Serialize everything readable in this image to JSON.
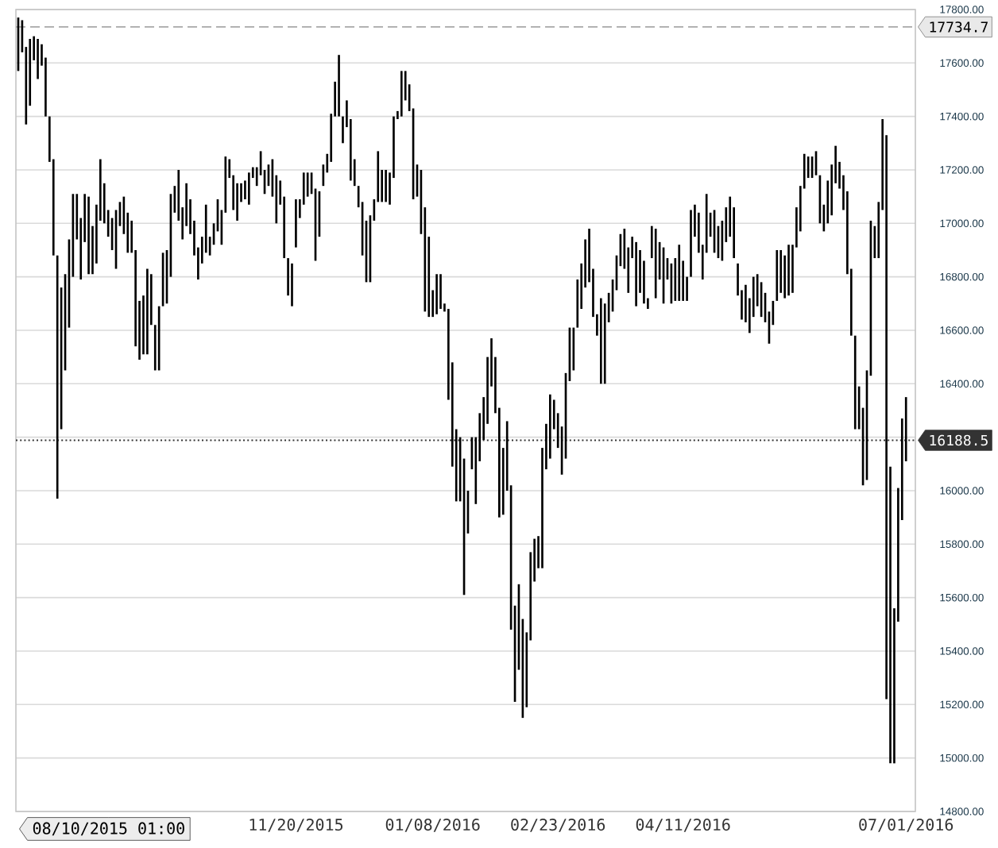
{
  "chart_data": {
    "type": "bar",
    "color": "#000000",
    "categories": [
      null,
      null,
      null,
      null,
      null,
      null,
      null,
      null,
      null,
      null,
      null,
      null,
      null,
      null,
      null,
      null,
      null,
      null,
      null,
      null,
      null,
      null,
      null,
      null,
      null,
      null,
      null,
      null,
      null,
      null,
      null,
      null,
      null,
      null,
      null,
      null,
      null,
      null,
      null,
      null,
      null,
      null,
      null,
      null,
      null,
      null,
      null,
      null,
      null,
      null,
      null,
      null,
      null,
      null,
      null,
      null,
      null,
      null,
      null,
      null,
      null,
      null,
      null,
      null,
      null,
      null,
      null,
      null,
      null,
      null,
      null,
      "11/20/2015",
      null,
      null,
      null,
      null,
      null,
      null,
      null,
      null,
      null,
      null,
      null,
      null,
      null,
      null,
      null,
      null,
      null,
      null,
      null,
      null,
      null,
      null,
      null,
      null,
      null,
      null,
      null,
      null,
      null,
      null,
      null,
      null,
      null,
      null,
      "01/08/2016",
      null,
      null,
      null,
      null,
      null,
      null,
      null,
      null,
      null,
      null,
      null,
      null,
      null,
      null,
      null,
      null,
      null,
      null,
      null,
      null,
      null,
      null,
      null,
      null,
      null,
      null,
      null,
      null,
      null,
      null,
      null,
      "02/23/2016",
      null,
      null,
      null,
      null,
      null,
      null,
      null,
      null,
      null,
      null,
      null,
      null,
      null,
      null,
      null,
      null,
      null,
      null,
      null,
      null,
      null,
      null,
      null,
      null,
      null,
      null,
      null,
      null,
      null,
      null,
      null,
      "04/11/2016",
      null,
      null,
      null,
      null,
      null,
      null,
      null,
      null,
      null,
      null,
      null,
      null,
      null,
      null,
      null,
      null,
      null,
      null,
      null,
      null,
      null,
      null,
      null,
      null,
      null,
      null,
      null,
      null,
      null,
      null,
      null,
      null,
      null,
      null,
      null,
      null,
      null,
      null,
      null,
      null,
      null,
      null,
      null,
      null,
      null,
      null,
      null,
      null,
      null,
      null,
      null,
      null,
      null,
      null,
      null,
      null,
      "07/01/2016"
    ],
    "values": [
      200,
      120,
      290,
      250,
      90,
      150,
      80,
      220,
      170,
      360,
      910,
      530,
      360,
      330,
      310,
      170,
      230,
      180,
      290,
      180,
      220,
      230,
      150,
      100,
      120,
      220,
      90,
      140,
      150,
      120,
      360,
      220,
      220,
      320,
      190,
      170,
      240,
      200,
      200,
      310,
      100,
      190,
      120,
      160,
      130,
      130,
      120,
      100,
      180,
      70,
      80,
      120,
      130,
      210,
      70,
      130,
      140,
      70,
      70,
      120,
      40,
      70,
      90,
      90,
      80,
      140,
      180,
      90,
      230,
      140,
      160,
      180,
      70,
      120,
      90,
      80,
      270,
      170,
      80,
      70,
      180,
      130,
      230,
      100,
      100,
      230,
      100,
      80,
      200,
      230,
      250,
      80,
      190,
      120,
      120,
      120,
      230,
      30,
      170,
      110,
      100,
      340,
      120,
      240,
      390,
      300,
      100,
      150,
      130,
      30,
      340,
      390,
      270,
      240,
      510,
      160,
      120,
      250,
      180,
      160,
      250,
      180,
      210,
      410,
      250,
      260,
      540,
      360,
      320,
      370,
      280,
      330,
      160,
      120,
      450,
      170,
      240,
      110,
      130,
      180,
      320,
      200,
      160,
      180,
      170,
      180,
      200,
      180,
      80,
      320,
      300,
      110,
      120,
      130,
      120,
      150,
      170,
      80,
      240,
      160,
      160,
      40,
      120,
      260,
      140,
      210,
      80,
      150,
      160,
      210,
      150,
      90,
      250,
      120,
      150,
      130,
      220,
      90,
      160,
      120,
      150,
      130,
      150,
      190,
      120,
      110,
      140,
      130,
      150,
      120,
      130,
      110,
      120,
      90,
      190,
      160,
      160,
      190,
      180,
      150,
      170,
      130,
      80,
      80,
      90,
      180,
      100,
      160,
      190,
      140,
      100,
      130,
      310,
      250,
      350,
      160,
      290,
      410,
      580,
      120,
      210,
      340,
      2110,
      1110,
      580,
      500,
      380,
      240
    ],
    "base": [
      17570,
      17640,
      17370,
      17440,
      17610,
      17540,
      17590,
      17400,
      17230,
      16880,
      15970,
      16230,
      16450,
      16610,
      16800,
      16940,
      16790,
      16930,
      16810,
      16810,
      16850,
      17010,
      17000,
      16950,
      16900,
      16830,
      16990,
      16960,
      16890,
      16890,
      16540,
      16490,
      16510,
      16510,
      16620,
      16450,
      16450,
      16690,
      16700,
      16800,
      17040,
      17010,
      16940,
      16990,
      16960,
      16880,
      16790,
      16850,
      16890,
      16880,
      16920,
      16970,
      16920,
      17040,
      17170,
      17050,
      17010,
      17080,
      17090,
      17070,
      17170,
      17140,
      17180,
      17110,
      17140,
      17100,
      17000,
      17070,
      16870,
      16730,
      16690,
      16910,
      17020,
      17070,
      17100,
      17110,
      16860,
      16950,
      17140,
      17190,
      17230,
      17400,
      17400,
      17300,
      17360,
      17160,
      17140,
      17060,
      16880,
      16780,
      16780,
      17010,
      17080,
      17080,
      17080,
      17070,
      17170,
      17390,
      17400,
      17460,
      17420,
      17090,
      17100,
      16960,
      16670,
      16650,
      16650,
      16660,
      16680,
      16670,
      16340,
      16090,
      15960,
      15960,
      15610,
      15840,
      16080,
      15950,
      16110,
      16190,
      16250,
      16390,
      16290,
      15900,
      15910,
      16000,
      15480,
      15210,
      15330,
      15150,
      15190,
      15440,
      15660,
      15710,
      15710,
      16080,
      16120,
      16230,
      16160,
      16060,
      16120,
      16410,
      16450,
      16610,
      16680,
      16760,
      16780,
      16650,
      16580,
      16400,
      16400,
      16630,
      16670,
      16750,
      16840,
      16830,
      16740,
      16870,
      16690,
      16740,
      16700,
      16680,
      16870,
      16720,
      16790,
      16700,
      16790,
      16700,
      16710,
      16710,
      16710,
      16710,
      16800,
      16950,
      16890,
      16790,
      16890,
      16950,
      16890,
      16870,
      16860,
      16930,
      16950,
      16870,
      16730,
      16640,
      16630,
      16590,
      16650,
      16690,
      16650,
      16630,
      16550,
      16620,
      16710,
      16740,
      16720,
      16730,
      16740,
      16910,
      16970,
      17130,
      17170,
      17170,
      17180,
      17000,
      16970,
      17000,
      17030,
      17150,
      17130,
      17050,
      16810,
      16580,
      16230,
      16230,
      16020,
      16040,
      16430,
      16870,
      16870,
      17050,
      15220,
      14980,
      14980,
      15510,
      15890,
      16110
    ],
    "ylim": [
      14800,
      17800
    ],
    "yticks": [
      {
        "value": 14800,
        "label": "14800.00"
      },
      {
        "value": 15000,
        "label": "15000.00"
      },
      {
        "value": 15200,
        "label": "15200.00"
      },
      {
        "value": 15400,
        "label": "15400.00"
      },
      {
        "value": 15600,
        "label": "15600.00"
      },
      {
        "value": 15800,
        "label": "15800.00"
      },
      {
        "value": 16000,
        "label": "16000.00"
      },
      {
        "value": 16200,
        "label": null
      },
      {
        "value": 16400,
        "label": "16400.00"
      },
      {
        "value": 16600,
        "label": "16600.00"
      },
      {
        "value": 16800,
        "label": "16800.00"
      },
      {
        "value": 17000,
        "label": "17000.00"
      },
      {
        "value": 17200,
        "label": "17200.00"
      },
      {
        "value": 17400,
        "label": "17400.00"
      },
      {
        "value": 17600,
        "label": "17600.00"
      },
      {
        "value": 17800,
        "label": "17800.00"
      }
    ],
    "grid": "y",
    "ref_lines": [
      {
        "axis": "y",
        "value": 17734.7,
        "label": "17734.7",
        "color": "#a8a8a8",
        "line_style": "dashed"
      },
      {
        "axis": "y",
        "value": 16188.5,
        "label": "16188.5",
        "color": "#333333",
        "line_style": "dotted"
      }
    ],
    "annotations": [
      "08/10/2015 01:00"
    ]
  }
}
